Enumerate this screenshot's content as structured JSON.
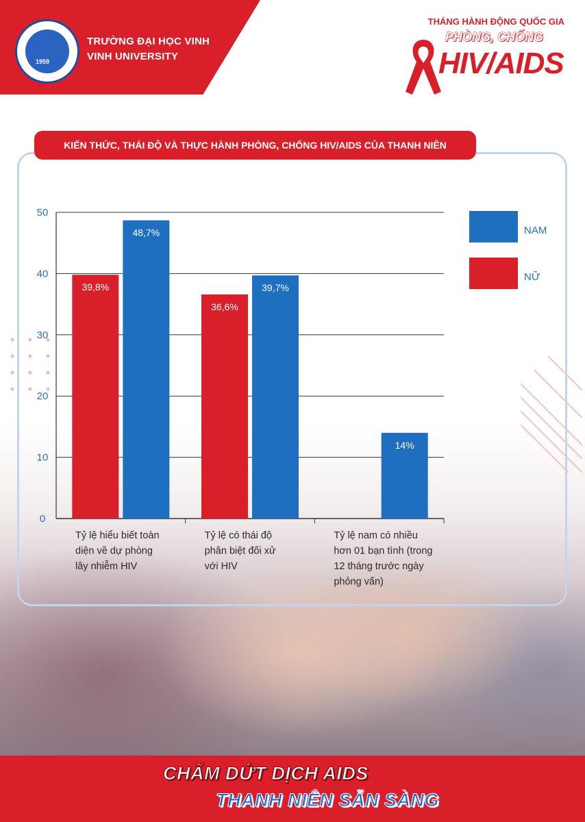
{
  "header": {
    "university_vn": "TRƯỜNG ĐẠI HỌC VINH",
    "university_en": "VINH UNIVERSITY",
    "logo_year": "1959",
    "campaign_line1": "THÁNG HÀNH ĐỘNG QUỐC GIA",
    "campaign_line2": "PHÒNG, CHỐNG",
    "campaign_line3": "HIV/AIDS"
  },
  "colors": {
    "red": "#d81f2a",
    "blue": "#1f6fc0",
    "grid": "#333333",
    "axis_text": "#2a6fb8"
  },
  "chart_data": {
    "type": "bar",
    "title": "KIẾN THỨC, THÁI ĐỘ VÀ THỰC HÀNH PHÒNG, CHỐNG HIV/AIDS CỦA THANH NIÊN",
    "categories": [
      [
        "Tỷ lệ hiểu biết toàn",
        "diện về dự phòng",
        "lây nhiễm HIV"
      ],
      [
        "Tỷ lệ có thái độ",
        "phân biệt đối xử",
        "với HIV"
      ],
      [
        "Tỷ lệ nam có nhiều",
        "hơn 01 bạn tình (trong",
        "12 tháng trước ngày",
        "phỏng vấn)"
      ]
    ],
    "series": [
      {
        "name": "NỮ",
        "color": "#d81f2a",
        "values": [
          39.8,
          36.6,
          null
        ],
        "labels": [
          "39,8%",
          "36,6%",
          ""
        ]
      },
      {
        "name": "NAM",
        "color": "#1f6fc0",
        "values": [
          48.7,
          39.7,
          14
        ],
        "labels": [
          "48,7%",
          "39,7%",
          "14%"
        ]
      }
    ],
    "ylim": [
      0,
      50
    ],
    "yticks": [
      0,
      10,
      20,
      30,
      40,
      50
    ],
    "legend_order": [
      "NAM",
      "NỮ"
    ],
    "legend_position": "right",
    "grid": true
  },
  "footer": {
    "slogan_line1": "CHẤM DỨT DỊCH AIDS",
    "slogan_line2": "THANH NIÊN SẴN SÀNG"
  }
}
